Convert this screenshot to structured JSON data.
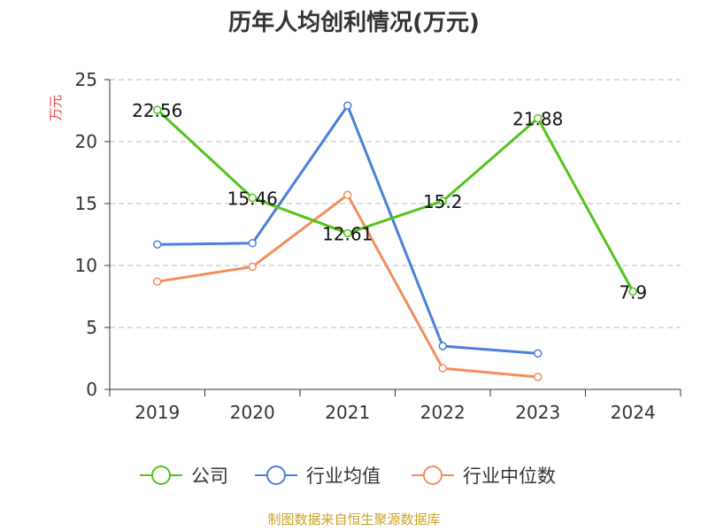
{
  "colors": {
    "company": "#52c41a",
    "industry_avg": "#4a7fd9",
    "industry_median": "#f28e5c",
    "ylabel": "#e8413d",
    "source": "#c9a227",
    "grid": "#bbbbbb",
    "axis": "#333333"
  },
  "chart_data": {
    "type": "line",
    "title": "历年人均创利情况(万元)",
    "ylabel": "万元",
    "xlabel": "",
    "categories": [
      "2019",
      "2020",
      "2021",
      "2022",
      "2023",
      "2024"
    ],
    "ylim": [
      0,
      25
    ],
    "yticks": [
      0,
      5,
      10,
      15,
      20,
      25
    ],
    "grid": "horizontal-dashed",
    "legend_position": "bottom-center",
    "series": [
      {
        "name": "公司",
        "color_key": "company",
        "values": [
          22.56,
          15.46,
          12.61,
          15.2,
          21.88,
          7.9
        ],
        "labels": [
          "22.56",
          "15.46",
          "12.61",
          "15.2",
          "21.88",
          "7.9"
        ]
      },
      {
        "name": "行业均值",
        "color_key": "industry_avg",
        "values": [
          11.7,
          11.8,
          22.9,
          3.5,
          2.9,
          null
        ]
      },
      {
        "name": "行业中位数",
        "color_key": "industry_median",
        "values": [
          8.7,
          9.9,
          15.7,
          1.7,
          1.0,
          null
        ]
      }
    ]
  },
  "footer": {
    "source": "制图数据来自恒生聚源数据库"
  }
}
